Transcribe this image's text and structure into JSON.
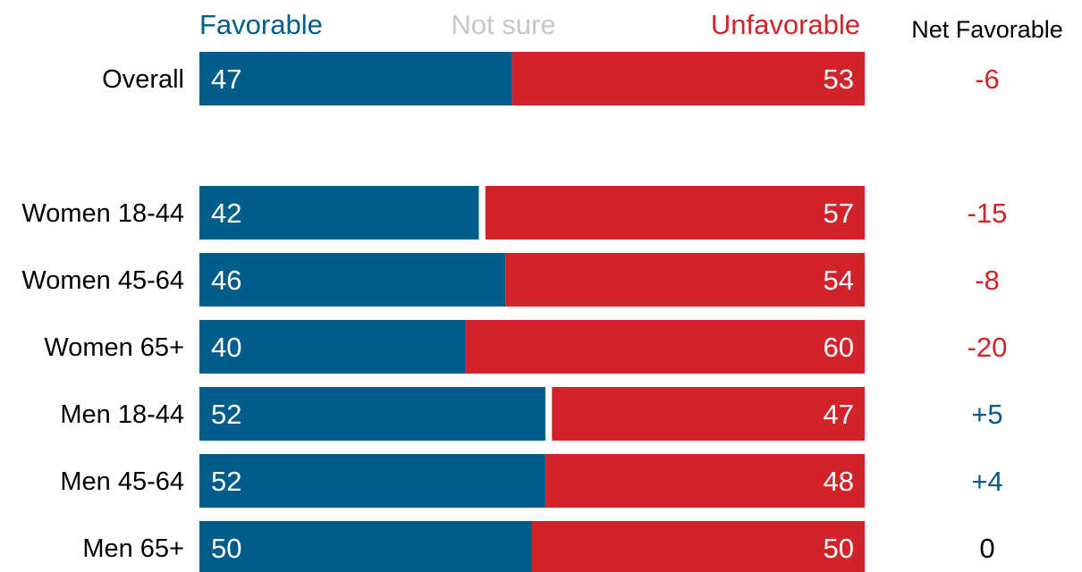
{
  "chart_data": {
    "type": "bar",
    "stacked": true,
    "orientation": "horizontal",
    "x_range": [
      0,
      100
    ],
    "headers": {
      "favorable": "Favorable",
      "not_sure": "Not sure",
      "unfavorable": "Unfavorable",
      "net": "Net Favorable"
    },
    "colors": {
      "favorable": "#005c8a",
      "not_sure": "#c4c4c4",
      "unfavorable": "#d2232a",
      "header_not_sure": "#c7c7c7",
      "net_negative": "#d2232a",
      "net_positive": "#005c8a",
      "net_zero": "#000000"
    },
    "categories": [
      "Overall",
      "Women 18-44",
      "Women 45-64",
      "Women 65+",
      "Men 18-44",
      "Men 45-64",
      "Men 65+"
    ],
    "series": [
      {
        "name": "Favorable",
        "values": [
          47,
          42,
          46,
          40,
          52,
          52,
          50
        ]
      },
      {
        "name": "Not sure",
        "values": [
          0,
          1,
          0,
          0,
          1,
          0,
          0
        ]
      },
      {
        "name": "Unfavorable",
        "values": [
          53,
          57,
          54,
          60,
          47,
          48,
          50
        ]
      }
    ],
    "net_favorable": [
      "-6",
      "-15",
      "-8",
      "-20",
      "+5",
      "+4",
      "0"
    ]
  }
}
